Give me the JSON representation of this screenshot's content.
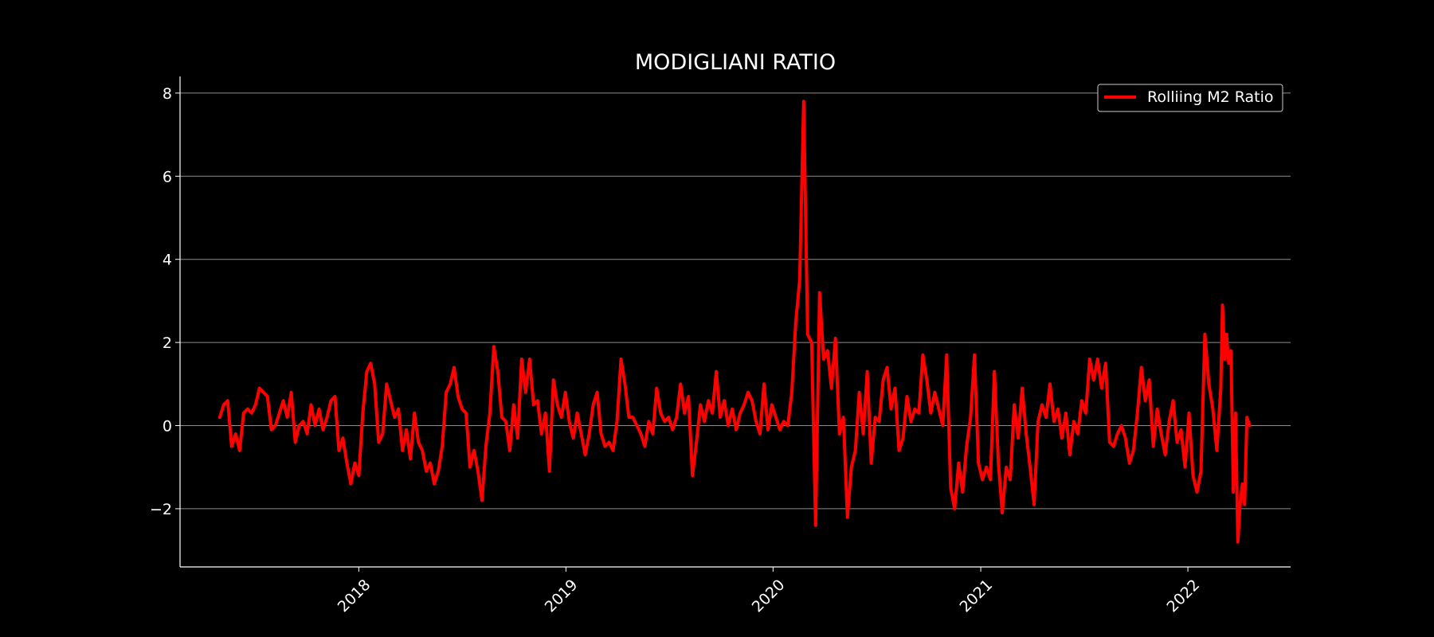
{
  "chart_data": {
    "type": "line",
    "title": "MODIGLIANI RATIO",
    "xlabel": "",
    "ylabel": "",
    "x_ticks": [
      "2018",
      "2019",
      "2020",
      "2021",
      "2022"
    ],
    "y_ticks": [
      -2,
      0,
      2,
      4,
      6,
      8
    ],
    "xlim": [
      "2017-02-20",
      "2022-07-01"
    ],
    "ylim": [
      -3.4,
      8.4
    ],
    "grid": "horizontal",
    "legend_position": "top-right",
    "colors": {
      "background": "#000000",
      "line": "#ff0000",
      "grid": "#8c8c8c",
      "text": "#ffffff"
    },
    "series": [
      {
        "name": "Rolliing M2 Ratio",
        "points": [
          [
            "2017-05-01",
            0.2
          ],
          [
            "2017-05-08",
            0.5
          ],
          [
            "2017-05-15",
            0.6
          ],
          [
            "2017-05-22",
            -0.5
          ],
          [
            "2017-05-29",
            -0.2
          ],
          [
            "2017-06-05",
            -0.6
          ],
          [
            "2017-06-12",
            0.3
          ],
          [
            "2017-06-19",
            0.4
          ],
          [
            "2017-06-26",
            0.3
          ],
          [
            "2017-07-03",
            0.5
          ],
          [
            "2017-07-10",
            0.9
          ],
          [
            "2017-07-17",
            0.8
          ],
          [
            "2017-07-24",
            0.7
          ],
          [
            "2017-07-31",
            -0.1
          ],
          [
            "2017-08-07",
            0.0
          ],
          [
            "2017-08-14",
            0.3
          ],
          [
            "2017-08-21",
            0.6
          ],
          [
            "2017-08-28",
            0.2
          ],
          [
            "2017-09-04",
            0.8
          ],
          [
            "2017-09-11",
            -0.4
          ],
          [
            "2017-09-18",
            0.0
          ],
          [
            "2017-09-25",
            0.1
          ],
          [
            "2017-10-02",
            -0.2
          ],
          [
            "2017-10-09",
            0.5
          ],
          [
            "2017-10-16",
            0.0
          ],
          [
            "2017-10-23",
            0.4
          ],
          [
            "2017-10-30",
            -0.1
          ],
          [
            "2017-11-06",
            0.2
          ],
          [
            "2017-11-13",
            0.6
          ],
          [
            "2017-11-20",
            0.7
          ],
          [
            "2017-11-27",
            -0.6
          ],
          [
            "2017-12-04",
            -0.3
          ],
          [
            "2017-12-11",
            -0.9
          ],
          [
            "2017-12-18",
            -1.4
          ],
          [
            "2017-12-25",
            -0.9
          ],
          [
            "2018-01-01",
            -1.2
          ],
          [
            "2018-01-08",
            0.3
          ],
          [
            "2018-01-15",
            1.3
          ],
          [
            "2018-01-22",
            1.5
          ],
          [
            "2018-01-29",
            1.0
          ],
          [
            "2018-02-05",
            -0.4
          ],
          [
            "2018-02-12",
            -0.2
          ],
          [
            "2018-02-19",
            1.0
          ],
          [
            "2018-02-26",
            0.6
          ],
          [
            "2018-03-05",
            0.2
          ],
          [
            "2018-03-12",
            0.4
          ],
          [
            "2018-03-19",
            -0.6
          ],
          [
            "2018-03-26",
            -0.1
          ],
          [
            "2018-04-02",
            -0.8
          ],
          [
            "2018-04-09",
            0.3
          ],
          [
            "2018-04-16",
            -0.4
          ],
          [
            "2018-04-23",
            -0.6
          ],
          [
            "2018-04-30",
            -1.1
          ],
          [
            "2018-05-07",
            -0.9
          ],
          [
            "2018-05-14",
            -1.4
          ],
          [
            "2018-05-21",
            -1.1
          ],
          [
            "2018-05-28",
            -0.5
          ],
          [
            "2018-06-04",
            0.8
          ],
          [
            "2018-06-11",
            1.0
          ],
          [
            "2018-06-18",
            1.4
          ],
          [
            "2018-06-25",
            0.7
          ],
          [
            "2018-07-02",
            0.4
          ],
          [
            "2018-07-09",
            0.3
          ],
          [
            "2018-07-16",
            -1.0
          ],
          [
            "2018-07-23",
            -0.6
          ],
          [
            "2018-07-30",
            -1.1
          ],
          [
            "2018-08-06",
            -1.8
          ],
          [
            "2018-08-13",
            -0.5
          ],
          [
            "2018-08-20",
            0.3
          ],
          [
            "2018-08-27",
            1.9
          ],
          [
            "2018-09-03",
            1.3
          ],
          [
            "2018-09-10",
            0.2
          ],
          [
            "2018-09-17",
            0.1
          ],
          [
            "2018-09-24",
            -0.6
          ],
          [
            "2018-10-01",
            0.5
          ],
          [
            "2018-10-08",
            -0.3
          ],
          [
            "2018-10-15",
            1.6
          ],
          [
            "2018-10-22",
            0.8
          ],
          [
            "2018-10-29",
            1.6
          ],
          [
            "2018-11-05",
            0.5
          ],
          [
            "2018-11-12",
            0.6
          ],
          [
            "2018-11-19",
            -0.2
          ],
          [
            "2018-11-26",
            0.3
          ],
          [
            "2018-12-03",
            -1.1
          ],
          [
            "2018-12-10",
            1.1
          ],
          [
            "2018-12-17",
            0.5
          ],
          [
            "2018-12-24",
            0.2
          ],
          [
            "2018-12-31",
            0.8
          ],
          [
            "2019-01-07",
            0.1
          ],
          [
            "2019-01-14",
            -0.3
          ],
          [
            "2019-01-21",
            0.3
          ],
          [
            "2019-01-28",
            -0.2
          ],
          [
            "2019-02-04",
            -0.7
          ],
          [
            "2019-02-11",
            -0.2
          ],
          [
            "2019-02-18",
            0.5
          ],
          [
            "2019-02-25",
            0.8
          ],
          [
            "2019-03-04",
            -0.2
          ],
          [
            "2019-03-11",
            -0.5
          ],
          [
            "2019-03-18",
            -0.4
          ],
          [
            "2019-03-25",
            -0.6
          ],
          [
            "2019-04-01",
            0.1
          ],
          [
            "2019-04-08",
            1.6
          ],
          [
            "2019-04-15",
            1.0
          ],
          [
            "2019-04-22",
            0.2
          ],
          [
            "2019-04-29",
            0.2
          ],
          [
            "2019-05-06",
            0.0
          ],
          [
            "2019-05-13",
            -0.2
          ],
          [
            "2019-05-20",
            -0.5
          ],
          [
            "2019-05-27",
            0.1
          ],
          [
            "2019-06-03",
            -0.2
          ],
          [
            "2019-06-10",
            0.9
          ],
          [
            "2019-06-17",
            0.3
          ],
          [
            "2019-06-24",
            0.1
          ],
          [
            "2019-07-01",
            0.2
          ],
          [
            "2019-07-08",
            -0.1
          ],
          [
            "2019-07-15",
            0.2
          ],
          [
            "2019-07-22",
            1.0
          ],
          [
            "2019-07-29",
            0.3
          ],
          [
            "2019-08-05",
            0.7
          ],
          [
            "2019-08-12",
            -1.2
          ],
          [
            "2019-08-19",
            -0.4
          ],
          [
            "2019-08-26",
            0.5
          ],
          [
            "2019-09-02",
            0.1
          ],
          [
            "2019-09-09",
            0.6
          ],
          [
            "2019-09-16",
            0.3
          ],
          [
            "2019-09-23",
            1.3
          ],
          [
            "2019-09-30",
            0.2
          ],
          [
            "2019-10-07",
            0.6
          ],
          [
            "2019-10-14",
            0.0
          ],
          [
            "2019-10-21",
            0.4
          ],
          [
            "2019-10-28",
            -0.1
          ],
          [
            "2019-11-04",
            0.3
          ],
          [
            "2019-11-11",
            0.5
          ],
          [
            "2019-11-18",
            0.8
          ],
          [
            "2019-11-25",
            0.6
          ],
          [
            "2019-12-02",
            0.1
          ],
          [
            "2019-12-09",
            -0.2
          ],
          [
            "2019-12-16",
            1.0
          ],
          [
            "2019-12-23",
            -0.1
          ],
          [
            "2019-12-30",
            0.5
          ],
          [
            "2020-01-06",
            0.2
          ],
          [
            "2020-01-13",
            -0.1
          ],
          [
            "2020-01-20",
            0.1
          ],
          [
            "2020-01-27",
            0.0
          ],
          [
            "2020-02-03",
            0.8
          ],
          [
            "2020-02-10",
            2.5
          ],
          [
            "2020-02-17",
            3.5
          ],
          [
            "2020-02-24",
            7.8
          ],
          [
            "2020-03-02",
            2.2
          ],
          [
            "2020-03-09",
            2.0
          ],
          [
            "2020-03-16",
            -2.4
          ],
          [
            "2020-03-23",
            3.2
          ],
          [
            "2020-03-30",
            1.6
          ],
          [
            "2020-04-06",
            1.8
          ],
          [
            "2020-04-13",
            0.9
          ],
          [
            "2020-04-20",
            2.1
          ],
          [
            "2020-04-27",
            -0.2
          ],
          [
            "2020-05-04",
            0.2
          ],
          [
            "2020-05-11",
            -2.2
          ],
          [
            "2020-05-18",
            -1.0
          ],
          [
            "2020-05-25",
            -0.6
          ],
          [
            "2020-06-01",
            0.8
          ],
          [
            "2020-06-08",
            -0.2
          ],
          [
            "2020-06-15",
            1.3
          ],
          [
            "2020-06-22",
            -0.9
          ],
          [
            "2020-06-29",
            0.2
          ],
          [
            "2020-07-06",
            0.1
          ],
          [
            "2020-07-13",
            1.1
          ],
          [
            "2020-07-20",
            1.4
          ],
          [
            "2020-07-27",
            0.4
          ],
          [
            "2020-08-03",
            0.9
          ],
          [
            "2020-08-10",
            -0.6
          ],
          [
            "2020-08-17",
            -0.3
          ],
          [
            "2020-08-24",
            0.7
          ],
          [
            "2020-08-31",
            0.1
          ],
          [
            "2020-09-07",
            0.4
          ],
          [
            "2020-09-14",
            0.3
          ],
          [
            "2020-09-21",
            1.7
          ],
          [
            "2020-09-28",
            1.1
          ],
          [
            "2020-10-05",
            0.3
          ],
          [
            "2020-10-12",
            0.8
          ],
          [
            "2020-10-19",
            0.4
          ],
          [
            "2020-10-26",
            0.0
          ],
          [
            "2020-11-02",
            1.7
          ],
          [
            "2020-11-09",
            -1.5
          ],
          [
            "2020-11-16",
            -2.0
          ],
          [
            "2020-11-23",
            -0.9
          ],
          [
            "2020-11-30",
            -1.6
          ],
          [
            "2020-12-07",
            -0.5
          ],
          [
            "2020-12-14",
            0.2
          ],
          [
            "2020-12-21",
            1.7
          ],
          [
            "2020-12-28",
            -0.9
          ],
          [
            "2021-01-04",
            -1.3
          ],
          [
            "2021-01-11",
            -1.0
          ],
          [
            "2021-01-18",
            -1.3
          ],
          [
            "2021-01-25",
            1.3
          ],
          [
            "2021-02-01",
            -0.9
          ],
          [
            "2021-02-08",
            -2.1
          ],
          [
            "2021-02-15",
            -1.0
          ],
          [
            "2021-02-22",
            -1.3
          ],
          [
            "2021-03-01",
            0.5
          ],
          [
            "2021-03-08",
            -0.3
          ],
          [
            "2021-03-15",
            0.9
          ],
          [
            "2021-03-22",
            -0.2
          ],
          [
            "2021-03-29",
            -1.0
          ],
          [
            "2021-04-05",
            -1.9
          ],
          [
            "2021-04-12",
            0.1
          ],
          [
            "2021-04-19",
            0.5
          ],
          [
            "2021-04-26",
            0.2
          ],
          [
            "2021-05-03",
            1.0
          ],
          [
            "2021-05-10",
            0.1
          ],
          [
            "2021-05-17",
            0.4
          ],
          [
            "2021-05-24",
            -0.3
          ],
          [
            "2021-05-31",
            0.3
          ],
          [
            "2021-06-07",
            -0.7
          ],
          [
            "2021-06-14",
            0.1
          ],
          [
            "2021-06-21",
            -0.2
          ],
          [
            "2021-06-28",
            0.6
          ],
          [
            "2021-07-05",
            0.3
          ],
          [
            "2021-07-12",
            1.6
          ],
          [
            "2021-07-19",
            1.1
          ],
          [
            "2021-07-26",
            1.6
          ],
          [
            "2021-08-02",
            0.9
          ],
          [
            "2021-08-09",
            1.5
          ],
          [
            "2021-08-16",
            -0.4
          ],
          [
            "2021-08-23",
            -0.5
          ],
          [
            "2021-08-30",
            -0.2
          ],
          [
            "2021-09-06",
            0.0
          ],
          [
            "2021-09-13",
            -0.3
          ],
          [
            "2021-09-20",
            -0.9
          ],
          [
            "2021-09-27",
            -0.6
          ],
          [
            "2021-10-04",
            0.3
          ],
          [
            "2021-10-11",
            1.4
          ],
          [
            "2021-10-18",
            0.6
          ],
          [
            "2021-10-25",
            1.1
          ],
          [
            "2021-11-01",
            -0.5
          ],
          [
            "2021-11-08",
            0.4
          ],
          [
            "2021-11-15",
            -0.2
          ],
          [
            "2021-11-22",
            -0.7
          ],
          [
            "2021-11-29",
            0.1
          ],
          [
            "2021-12-06",
            0.6
          ],
          [
            "2021-12-13",
            -0.4
          ],
          [
            "2021-12-20",
            -0.1
          ],
          [
            "2021-12-27",
            -1.0
          ],
          [
            "2022-01-03",
            0.3
          ],
          [
            "2022-01-10",
            -1.2
          ],
          [
            "2022-01-17",
            -1.6
          ],
          [
            "2022-01-24",
            -1.1
          ],
          [
            "2022-01-31",
            2.2
          ],
          [
            "2022-02-07",
            1.0
          ],
          [
            "2022-02-14",
            0.4
          ],
          [
            "2022-02-21",
            -0.6
          ],
          [
            "2022-02-28",
            0.9
          ],
          [
            "2022-03-03",
            2.9
          ],
          [
            "2022-03-07",
            1.6
          ],
          [
            "2022-03-10",
            2.2
          ],
          [
            "2022-03-14",
            1.5
          ],
          [
            "2022-03-18",
            1.8
          ],
          [
            "2022-03-22",
            -1.6
          ],
          [
            "2022-03-26",
            0.3
          ],
          [
            "2022-03-30",
            -2.8
          ],
          [
            "2022-04-03",
            -1.9
          ],
          [
            "2022-04-07",
            -1.4
          ],
          [
            "2022-04-11",
            -1.9
          ],
          [
            "2022-04-15",
            0.2
          ],
          [
            "2022-04-20",
            0.0
          ]
        ]
      }
    ]
  }
}
